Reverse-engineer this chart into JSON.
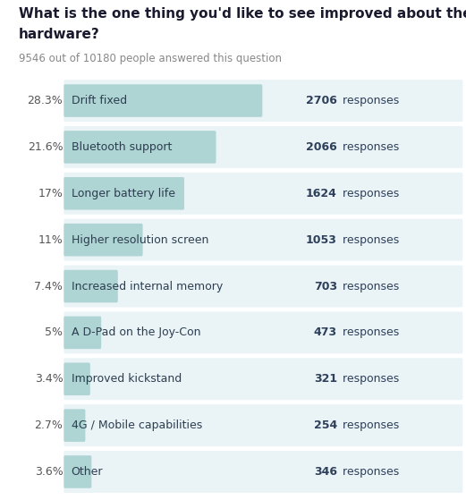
{
  "title_line1": "What is the one thing you'd like to see improved about the Switch",
  "title_line2": "hardware?",
  "subtitle": "9546 out of 10180 people answered this question",
  "categories": [
    "Drift fixed",
    "Bluetooth support",
    "Longer battery life",
    "Higher resolution screen",
    "Increased internal memory",
    "A D-Pad on the Joy-Con",
    "Improved kickstand",
    "4G / Mobile capabilities",
    "Other"
  ],
  "percentages": [
    28.3,
    21.6,
    17.0,
    11.0,
    7.4,
    5.0,
    3.4,
    2.7,
    3.6
  ],
  "responses": [
    2706,
    2066,
    1624,
    1053,
    703,
    473,
    321,
    254,
    346
  ],
  "pct_labels": [
    "28.3%",
    "21.6%",
    "17%",
    "11%",
    "7.4%",
    "5%",
    "3.4%",
    "2.7%",
    "3.6%"
  ],
  "bar_color": "#aed4d4",
  "bg_row_color": "#eaf4f7",
  "title_fontsize": 11,
  "subtitle_fontsize": 8.5,
  "label_fontsize": 9,
  "response_fontsize": 9,
  "pct_fontsize": 9,
  "title_color": "#1a1a2e",
  "subtitle_color": "#888888",
  "label_color": "#2c3e50",
  "response_bold_color": "#2d3f5a",
  "response_normal_color": "#2d3f5a",
  "pct_color": "#555555"
}
